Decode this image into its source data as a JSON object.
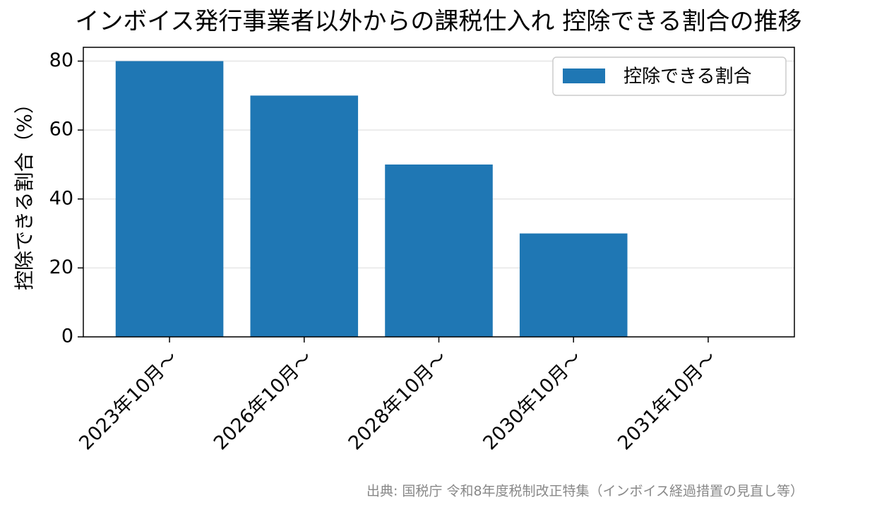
{
  "chart_data": {
    "type": "bar",
    "title": "インボイス発行事業者以外からの課税仕入れ 控除できる割合の推移",
    "y_label": "控除できる割合（%）",
    "categories": [
      "2023年10月〜",
      "2026年10月〜",
      "2028年10月〜",
      "2030年10月〜",
      "2031年10月〜"
    ],
    "series": [
      {
        "name": "控除できる割合",
        "color": "#1f77b4",
        "values": [
          80,
          70,
          50,
          30,
          0
        ]
      }
    ],
    "ylim": [
      0,
      84
    ],
    "yticks": [
      0,
      20,
      40,
      60,
      80
    ],
    "grid": true,
    "legend": "upper right",
    "source": "出典: 国税庁 令和8年度税制改正特集（インボイス経過措置の見直し等）"
  }
}
